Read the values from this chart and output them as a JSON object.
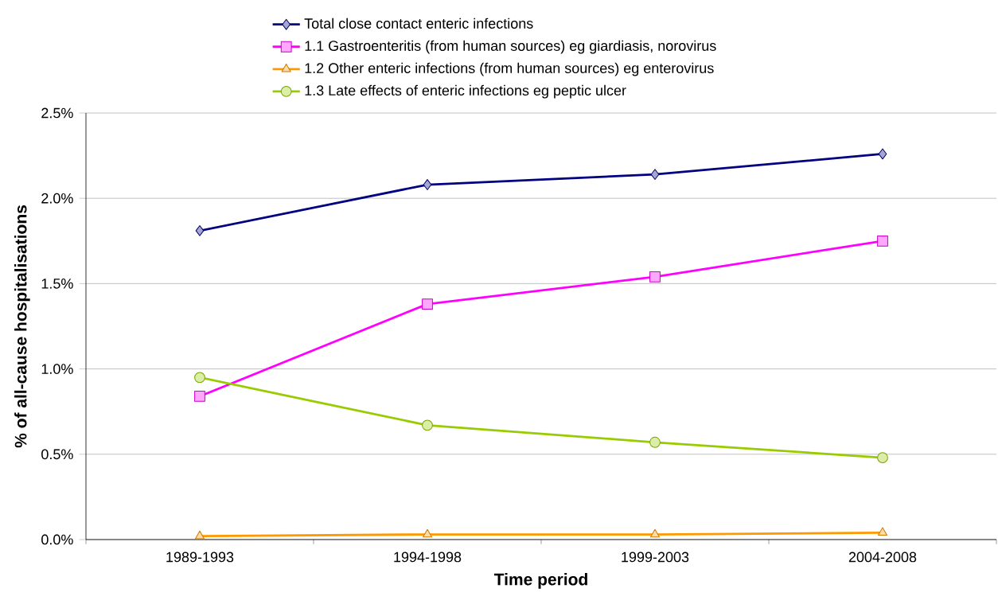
{
  "chart_data": {
    "type": "line",
    "xlabel": "Time period",
    "ylabel": "% of all-cause hospitalisations",
    "categories": [
      "1989-1993",
      "1994-1998",
      "1999-2003",
      "2004-2008"
    ],
    "series": [
      {
        "name": "Total close contact enteric infections",
        "color": "#000080",
        "marker": "diamond",
        "values": [
          1.81,
          2.08,
          2.14,
          2.26
        ]
      },
      {
        "name": "1.1 Gastroenteritis (from human sources) eg giardiasis, norovirus",
        "color": "#ff00ff",
        "marker": "square",
        "values": [
          0.84,
          1.38,
          1.54,
          1.75
        ]
      },
      {
        "name": "1.2 Other enteric infections (from human sources) eg enterovirus",
        "color": "#ff9900",
        "marker": "triangle",
        "values": [
          0.02,
          0.03,
          0.03,
          0.04
        ]
      },
      {
        "name": "1.3 Late effects of enteric infections eg peptic ulcer",
        "color": "#99cc00",
        "marker": "circle",
        "values": [
          0.95,
          0.67,
          0.57,
          0.48
        ]
      }
    ],
    "ylim": [
      0,
      2.5
    ],
    "yticks": [
      {
        "value": 0,
        "label": "0.0%"
      },
      {
        "value": 0.5,
        "label": "0.5%"
      },
      {
        "value": 1.0,
        "label": "1.0%"
      },
      {
        "value": 1.5,
        "label": "1.5%"
      },
      {
        "value": 2.0,
        "label": "2.0%"
      },
      {
        "value": 2.5,
        "label": "2.5%"
      }
    ],
    "grid": "y",
    "legend": "top",
    "line_style": "solid"
  }
}
